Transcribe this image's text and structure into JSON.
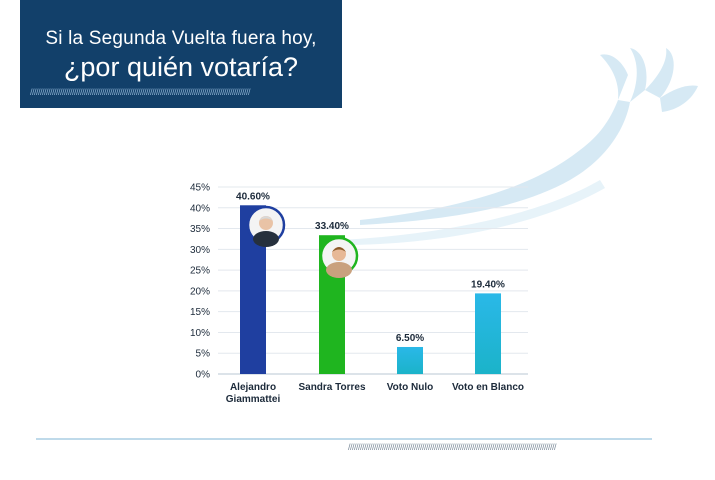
{
  "header": {
    "line1": "Si la Segunda Vuelta fuera hoy,",
    "line2": "¿por quién votaría?"
  },
  "colors": {
    "header_bg": "#12406a",
    "bar_colors": [
      "#1f3fa0",
      "#1fb51f",
      "#1bb3c9",
      "#1bb3c9"
    ]
  },
  "chart_data": {
    "type": "bar",
    "categories": [
      "Alejandro\nGiammattei",
      "Sandra Torres",
      "Voto Nulo",
      "Voto en Blanco"
    ],
    "values": [
      40.6,
      33.4,
      6.5,
      19.4
    ],
    "value_labels": [
      "40.60%",
      "33.40%",
      "6.50%",
      "19.40%"
    ],
    "y_ticks": [
      "0%",
      "5%",
      "10%",
      "15%",
      "20%",
      "25%",
      "30%",
      "35%",
      "40%",
      "45%"
    ],
    "ylim": [
      0,
      45
    ],
    "grid": true,
    "title": "",
    "xlabel": "",
    "ylabel": ""
  }
}
